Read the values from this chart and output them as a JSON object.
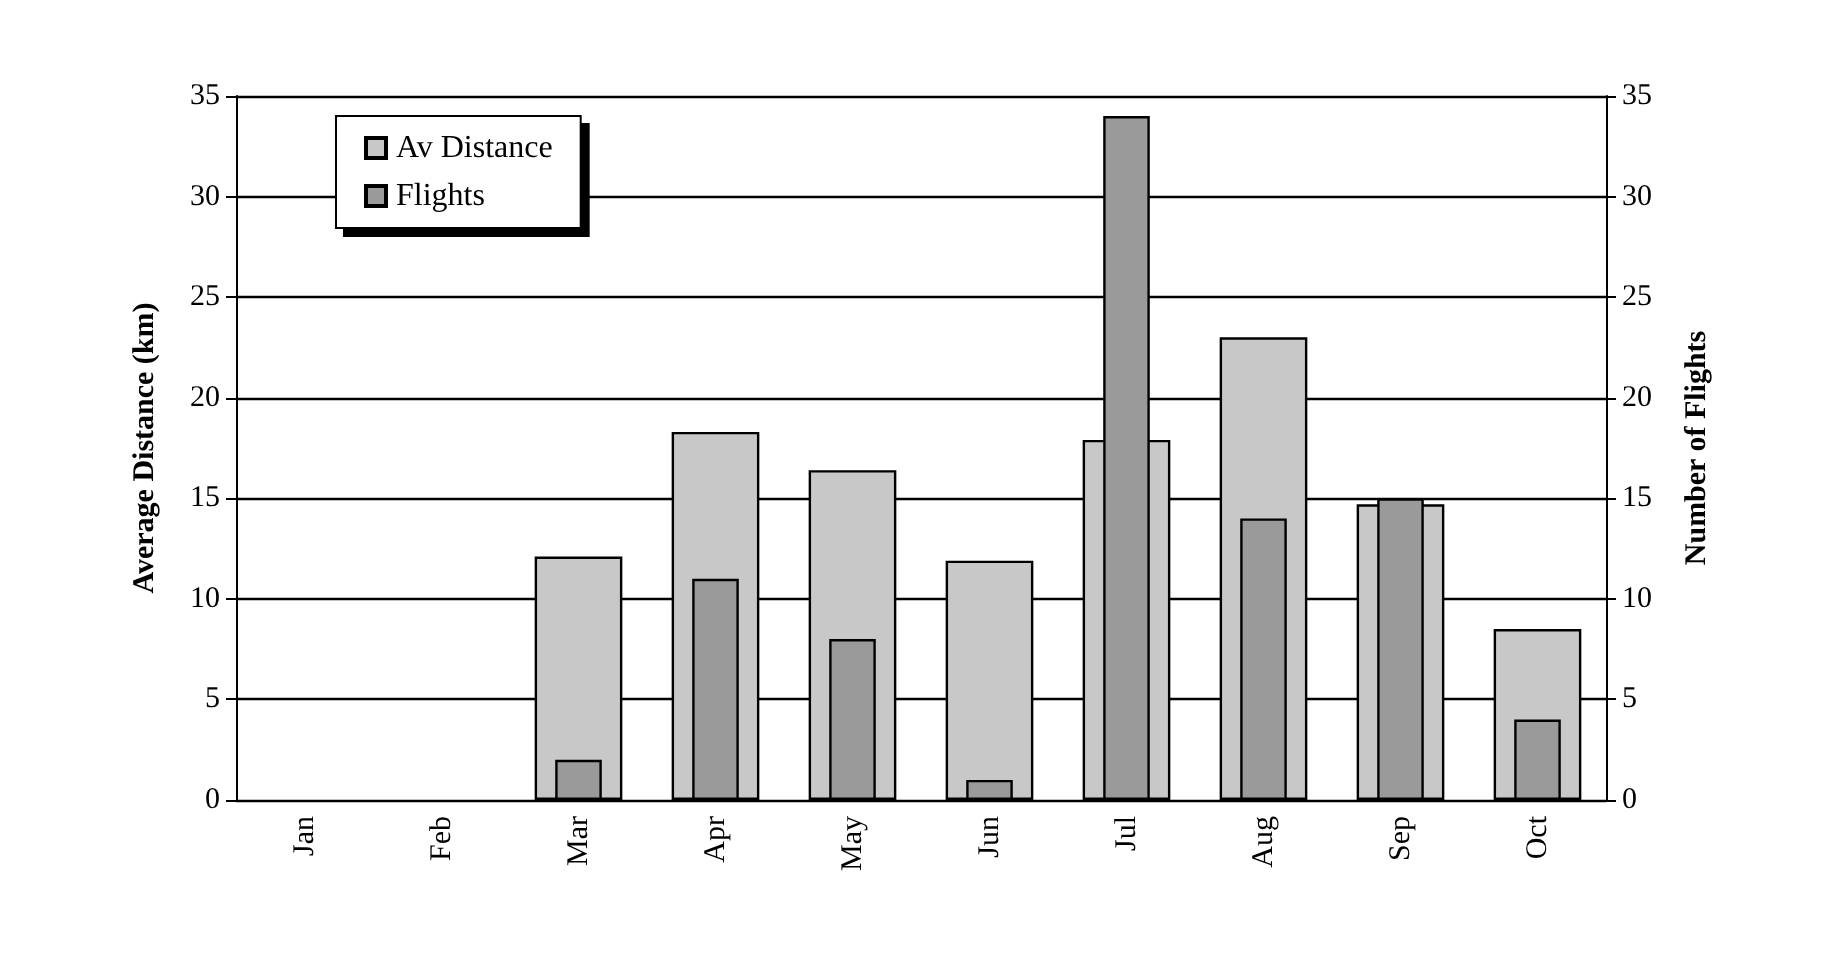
{
  "chart_data": {
    "type": "bar",
    "categories": [
      "Jan",
      "Feb",
      "Mar",
      "Apr",
      "May",
      "Jun",
      "Jul",
      "Aug",
      "Sep",
      "Oct"
    ],
    "ylabel": "Average Distance (km)",
    "y2label": "Number of Flights",
    "series": [
      {
        "name": "Av Distance",
        "color": "#c8c8c8",
        "values": [
          null,
          null,
          12.1,
          18.3,
          16.4,
          11.9,
          17.9,
          23,
          14.7,
          8.5
        ]
      },
      {
        "name": "Flights",
        "color": "#9a9a9a",
        "axis": "y2",
        "values": [
          null,
          null,
          2,
          11,
          8,
          1,
          34,
          14,
          15,
          4
        ]
      }
    ],
    "ylim": [
      0,
      35
    ],
    "yticks": [
      0,
      5,
      10,
      15,
      20,
      25,
      30,
      35
    ],
    "y2lim": [
      0,
      35
    ],
    "y2ticks": [
      0,
      5,
      10,
      15,
      20,
      25,
      30,
      35
    ],
    "grid": "y",
    "legend": "top left"
  }
}
